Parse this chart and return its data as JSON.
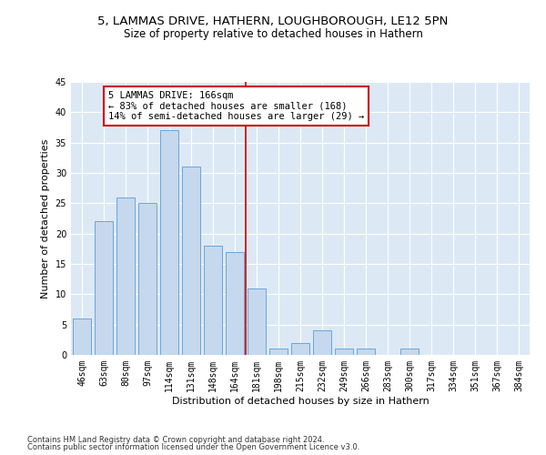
{
  "title1": "5, LAMMAS DRIVE, HATHERN, LOUGHBOROUGH, LE12 5PN",
  "title2": "Size of property relative to detached houses in Hathern",
  "xlabel": "Distribution of detached houses by size in Hathern",
  "ylabel": "Number of detached properties",
  "categories": [
    "46sqm",
    "63sqm",
    "80sqm",
    "97sqm",
    "114sqm",
    "131sqm",
    "148sqm",
    "164sqm",
    "181sqm",
    "198sqm",
    "215sqm",
    "232sqm",
    "249sqm",
    "266sqm",
    "283sqm",
    "300sqm",
    "317sqm",
    "334sqm",
    "351sqm",
    "367sqm",
    "384sqm"
  ],
  "values": [
    6,
    22,
    26,
    25,
    37,
    31,
    18,
    17,
    11,
    1,
    2,
    4,
    1,
    1,
    0,
    1,
    0,
    0,
    0,
    0,
    0
  ],
  "bar_color": "#c5d8ed",
  "bar_edge_color": "#5b9bd5",
  "vline_x": 7.5,
  "vline_color": "#cc0000",
  "annotation_text": "5 LAMMAS DRIVE: 166sqm\n← 83% of detached houses are smaller (168)\n14% of semi-detached houses are larger (29) →",
  "annotation_box_color": "#ffffff",
  "annotation_box_edge": "#cc0000",
  "ylim": [
    0,
    45
  ],
  "yticks": [
    0,
    5,
    10,
    15,
    20,
    25,
    30,
    35,
    40,
    45
  ],
  "background_color": "#dce9f5",
  "footer1": "Contains HM Land Registry data © Crown copyright and database right 2024.",
  "footer2": "Contains public sector information licensed under the Open Government Licence v3.0.",
  "title1_fontsize": 9.5,
  "title2_fontsize": 8.5,
  "xlabel_fontsize": 8,
  "ylabel_fontsize": 8,
  "tick_fontsize": 7,
  "annot_fontsize": 7.5,
  "footer_fontsize": 6
}
